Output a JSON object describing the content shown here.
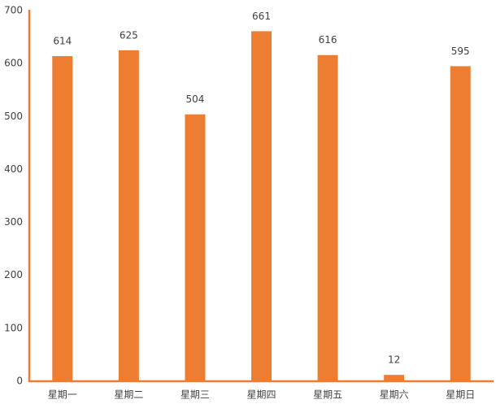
{
  "chart_data": {
    "type": "bar",
    "categories": [
      "星期一",
      "星期二",
      "星期三",
      "星期四",
      "星期五",
      "星期六",
      "星期日"
    ],
    "values": [
      614,
      625,
      504,
      661,
      616,
      12,
      595
    ],
    "color": "#ed7d31",
    "ylim": [
      0,
      700
    ],
    "yticks": [
      0,
      100,
      200,
      300,
      400,
      500,
      600,
      700
    ],
    "grid": false
  }
}
